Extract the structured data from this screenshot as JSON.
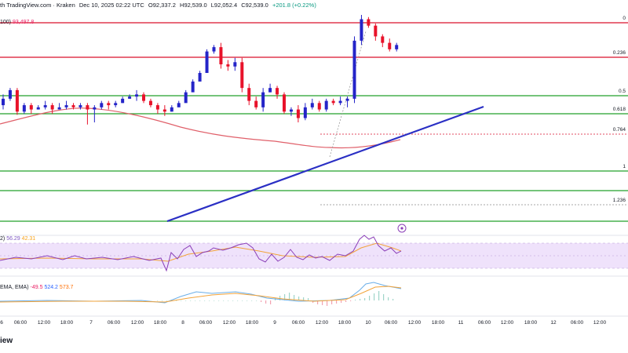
{
  "header": {
    "title_fragment": "th TradingView.com · Kraken",
    "date": "Dec 10, 2025 02:22 UTC",
    "open": "O92,337.2",
    "high": "H92,539.0",
    "low": "L92,052.4",
    "close": "C92,539.0",
    "change": "+201.8 (+0.22%)"
  },
  "ma_label": {
    "name": "100)",
    "value": "93,497.8"
  },
  "rsi_label": {
    "name": "2)",
    "value1": "56.29",
    "value2": "42.31"
  },
  "macd_label": {
    "name": "EMA, EMA)",
    "value1": "-49.5",
    "value2": "524.2",
    "value3": "573.7"
  },
  "brand": "iew",
  "colors": {
    "bull": "#2424c8",
    "bear": "#e8122a",
    "red_line": "#d9102c",
    "green_line": "#23a02a",
    "trendline": "#2a2fc4",
    "ma": "#e0606a",
    "rsi_line": "#8b3fb8",
    "rsi_band": "#efe2fb",
    "signal": "#f2a33a",
    "macd": "#6aaee8"
  },
  "chart_data": {
    "type": "candlestick",
    "fib_levels": [
      {
        "label": "0",
        "style": "red"
      },
      {
        "label": "0.236",
        "style": "red"
      },
      {
        "label": "0.5",
        "style": "green"
      },
      {
        "label": "0.618",
        "style": "green"
      },
      {
        "label": "0.764",
        "style": "red-dashed"
      },
      {
        "label": "1",
        "style": "green"
      },
      {
        "label": "1.236",
        "style": "gray-dashed"
      }
    ],
    "x_ticks": [
      "6",
      "06:00",
      "12:00",
      "18:00",
      "7",
      "06:00",
      "12:00",
      "18:00",
      "8",
      "06:00",
      "12:00",
      "18:00",
      "9",
      "06:00",
      "12:00",
      "18:00",
      "10",
      "06:00",
      "12:00",
      "18:00",
      "11",
      "06:00",
      "12:00",
      "18:00",
      "12",
      "06:00",
      "12:00"
    ],
    "candles": [
      [
        216,
        212,
        226,
        222
      ],
      [
        222,
        220,
        232,
        230
      ],
      [
        230,
        207,
        232,
        210
      ],
      [
        210,
        208,
        218,
        216
      ],
      [
        216,
        208,
        218,
        212
      ],
      [
        212,
        212,
        216,
        214
      ],
      [
        214,
        212,
        220,
        216
      ],
      [
        216,
        208,
        218,
        212
      ],
      [
        212,
        212,
        218,
        214
      ],
      [
        214,
        212,
        220,
        216
      ],
      [
        216,
        212,
        218,
        214
      ],
      [
        214,
        212,
        218,
        216
      ],
      [
        216,
        198,
        218,
        212
      ],
      [
        212,
        200,
        216,
        214
      ],
      [
        214,
        212,
        220,
        218
      ],
      [
        218,
        212,
        220,
        216
      ],
      [
        216,
        214,
        220,
        218
      ],
      [
        218,
        218,
        224,
        222
      ],
      [
        222,
        222,
        226,
        224
      ],
      [
        224,
        220,
        230,
        226
      ],
      [
        226,
        218,
        228,
        220
      ],
      [
        220,
        214,
        222,
        216
      ],
      [
        216,
        208,
        218,
        212
      ],
      [
        212,
        206,
        216,
        210
      ],
      [
        210,
        210,
        216,
        214
      ],
      [
        214,
        216,
        220,
        218
      ],
      [
        218,
        224,
        230,
        228
      ],
      [
        228,
        232,
        240,
        238
      ],
      [
        238,
        240,
        248,
        246
      ],
      [
        246,
        262,
        268,
        266
      ],
      [
        266,
        264,
        272,
        270
      ],
      [
        270,
        250,
        274,
        254
      ],
      [
        254,
        248,
        258,
        252
      ],
      [
        252,
        248,
        260,
        256
      ],
      [
        256,
        228,
        260,
        232
      ],
      [
        232,
        216,
        236,
        220
      ],
      [
        220,
        212,
        224,
        214
      ],
      [
        214,
        210,
        232,
        228
      ],
      [
        228,
        228,
        236,
        232
      ],
      [
        232,
        222,
        234,
        226
      ],
      [
        226,
        208,
        228,
        210
      ],
      [
        210,
        206,
        214,
        212
      ],
      [
        212,
        200,
        216,
        204
      ],
      [
        204,
        202,
        218,
        214
      ],
      [
        214,
        212,
        222,
        218
      ],
      [
        218,
        210,
        220,
        212
      ],
      [
        212,
        210,
        222,
        220
      ],
      [
        220,
        216,
        222,
        218
      ],
      [
        218,
        216,
        224,
        220
      ],
      [
        220,
        214,
        224,
        222
      ],
      [
        222,
        218,
        280,
        276
      ],
      [
        276,
        272,
        300,
        296
      ],
      [
        296,
        288,
        298,
        290
      ],
      [
        290,
        276,
        292,
        280
      ],
      [
        280,
        270,
        282,
        274
      ],
      [
        274,
        266,
        278,
        268
      ],
      [
        268,
        266,
        274,
        272
      ]
    ]
  }
}
